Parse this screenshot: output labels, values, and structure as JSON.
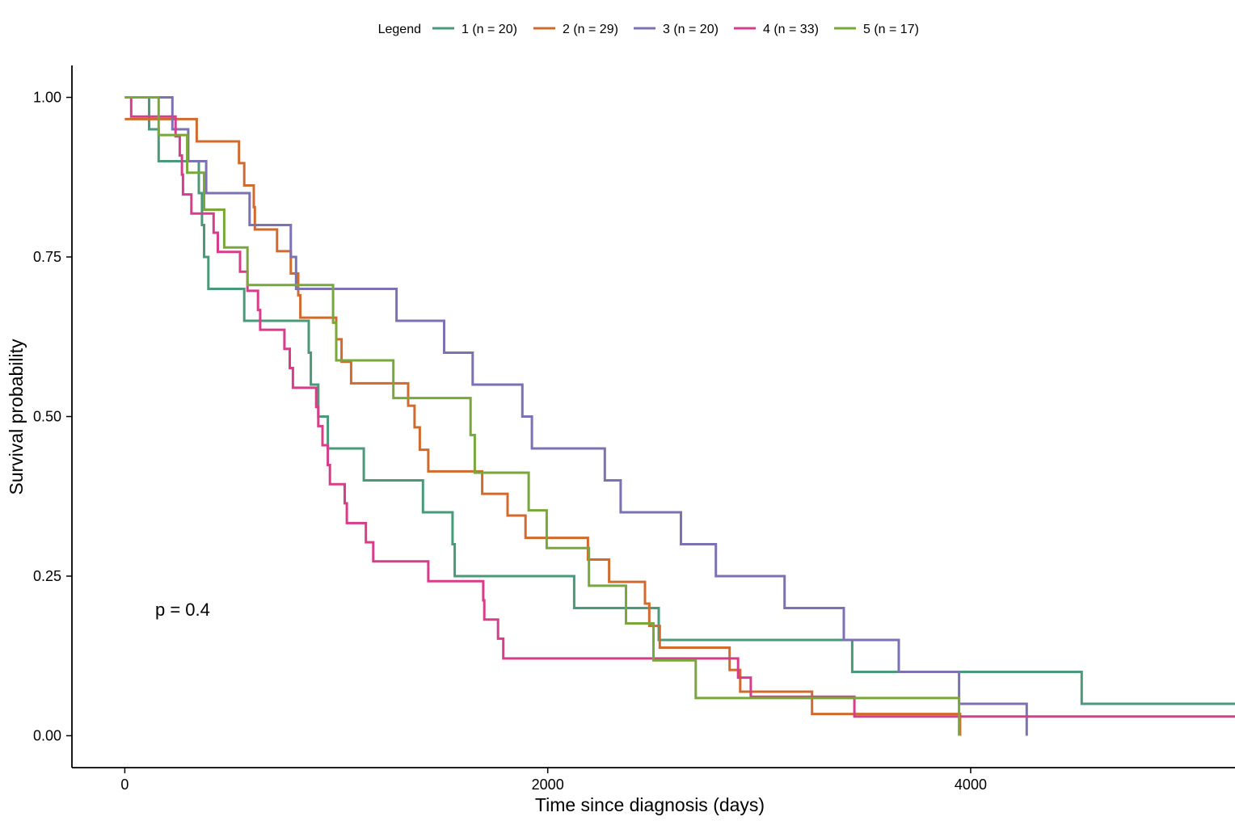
{
  "chart_data": {
    "type": "line",
    "style": "step",
    "xlabel": "Time since diagnosis (days)",
    "ylabel": "Survival probability",
    "xlim": [
      -250,
      5250
    ],
    "ylim": [
      -0.05,
      1.05
    ],
    "x_ticks": [
      0,
      2000,
      4000
    ],
    "x_tick_labels": [
      "0",
      "2000",
      "4000"
    ],
    "y_ticks": [
      0,
      0.25,
      0.5,
      0.75,
      1
    ],
    "y_tick_labels": [
      "0.00",
      "0.25",
      "0.50",
      "0.75",
      "1.00"
    ],
    "grid": false,
    "legend": {
      "title": "Legend",
      "position": "top"
    },
    "annotation": "p = 0.4",
    "series": [
      {
        "name": "1 (n = 20)",
        "color": "#4a9a7a",
        "points": [
          [
            0,
            1
          ],
          [
            115,
            0.95
          ],
          [
            160,
            0.9
          ],
          [
            350,
            0.85
          ],
          [
            365,
            0.8
          ],
          [
            375,
            0.75
          ],
          [
            395,
            0.7
          ],
          [
            565,
            0.65
          ],
          [
            870,
            0.6
          ],
          [
            880,
            0.55
          ],
          [
            915,
            0.5
          ],
          [
            960,
            0.45
          ],
          [
            1130,
            0.4
          ],
          [
            1410,
            0.35
          ],
          [
            1550,
            0.3
          ],
          [
            1560,
            0.25
          ],
          [
            2125,
            0.2
          ],
          [
            2525,
            0.15
          ],
          [
            3440,
            0.1
          ],
          [
            4525,
            0.05
          ],
          [
            5250,
            0.05
          ]
        ]
      },
      {
        "name": "2 (n = 29)",
        "color": "#d06b2d",
        "points": [
          [
            0,
            0.966
          ],
          [
            100,
            0.966
          ],
          [
            340,
            0.931
          ],
          [
            540,
            0.897
          ],
          [
            565,
            0.862
          ],
          [
            610,
            0.828
          ],
          [
            615,
            0.793
          ],
          [
            720,
            0.759
          ],
          [
            785,
            0.724
          ],
          [
            820,
            0.69
          ],
          [
            830,
            0.655
          ],
          [
            1000,
            0.621
          ],
          [
            1025,
            0.586
          ],
          [
            1070,
            0.552
          ],
          [
            1340,
            0.517
          ],
          [
            1370,
            0.483
          ],
          [
            1395,
            0.448
          ],
          [
            1435,
            0.414
          ],
          [
            1690,
            0.379
          ],
          [
            1810,
            0.345
          ],
          [
            1895,
            0.31
          ],
          [
            2190,
            0.276
          ],
          [
            2290,
            0.241
          ],
          [
            2460,
            0.207
          ],
          [
            2480,
            0.172
          ],
          [
            2530,
            0.138
          ],
          [
            2860,
            0.103
          ],
          [
            2910,
            0.069
          ],
          [
            3250,
            0.034
          ],
          [
            3950,
            0.034
          ],
          [
            3950,
            0
          ]
        ]
      },
      {
        "name": "3 (n = 20)",
        "color": "#7b72b3",
        "points": [
          [
            0,
            1
          ],
          [
            225,
            0.95
          ],
          [
            300,
            0.9
          ],
          [
            385,
            0.85
          ],
          [
            590,
            0.8
          ],
          [
            785,
            0.75
          ],
          [
            810,
            0.7
          ],
          [
            1285,
            0.65
          ],
          [
            1510,
            0.6
          ],
          [
            1645,
            0.55
          ],
          [
            1880,
            0.5
          ],
          [
            1925,
            0.45
          ],
          [
            2270,
            0.4
          ],
          [
            2345,
            0.35
          ],
          [
            2630,
            0.3
          ],
          [
            2795,
            0.25
          ],
          [
            3120,
            0.2
          ],
          [
            3400,
            0.15
          ],
          [
            3660,
            0.1
          ],
          [
            3945,
            0.05
          ],
          [
            4265,
            0.05
          ],
          [
            4265,
            0
          ]
        ]
      },
      {
        "name": "4 (n = 33)",
        "color": "#d63d8a",
        "points": [
          [
            0,
            1
          ],
          [
            30,
            0.97
          ],
          [
            130,
            0.97
          ],
          [
            240,
            0.939
          ],
          [
            260,
            0.909
          ],
          [
            270,
            0.879
          ],
          [
            275,
            0.848
          ],
          [
            315,
            0.818
          ],
          [
            420,
            0.788
          ],
          [
            440,
            0.758
          ],
          [
            545,
            0.727
          ],
          [
            580,
            0.697
          ],
          [
            630,
            0.667
          ],
          [
            640,
            0.636
          ],
          [
            755,
            0.606
          ],
          [
            780,
            0.576
          ],
          [
            795,
            0.545
          ],
          [
            905,
            0.515
          ],
          [
            915,
            0.485
          ],
          [
            935,
            0.455
          ],
          [
            960,
            0.424
          ],
          [
            970,
            0.394
          ],
          [
            1040,
            0.364
          ],
          [
            1050,
            0.333
          ],
          [
            1140,
            0.303
          ],
          [
            1175,
            0.273
          ],
          [
            1435,
            0.242
          ],
          [
            1695,
            0.212
          ],
          [
            1700,
            0.182
          ],
          [
            1765,
            0.152
          ],
          [
            1790,
            0.121
          ],
          [
            2900,
            0.121
          ],
          [
            2900,
            0.091
          ],
          [
            2960,
            0.061
          ],
          [
            3450,
            0.03
          ],
          [
            5250,
            0.03
          ]
        ]
      },
      {
        "name": "5 (n = 17)",
        "color": "#78a73a",
        "points": [
          [
            0,
            1
          ],
          [
            160,
            0.941
          ],
          [
            295,
            0.882
          ],
          [
            375,
            0.824
          ],
          [
            470,
            0.765
          ],
          [
            580,
            0.706
          ],
          [
            985,
            0.647
          ],
          [
            1000,
            0.588
          ],
          [
            1270,
            0.529
          ],
          [
            1635,
            0.471
          ],
          [
            1655,
            0.412
          ],
          [
            1910,
            0.353
          ],
          [
            1995,
            0.294
          ],
          [
            2195,
            0.235
          ],
          [
            2370,
            0.176
          ],
          [
            2500,
            0.118
          ],
          [
            2700,
            0.059
          ],
          [
            3945,
            0.059
          ],
          [
            3945,
            0
          ]
        ]
      }
    ]
  }
}
